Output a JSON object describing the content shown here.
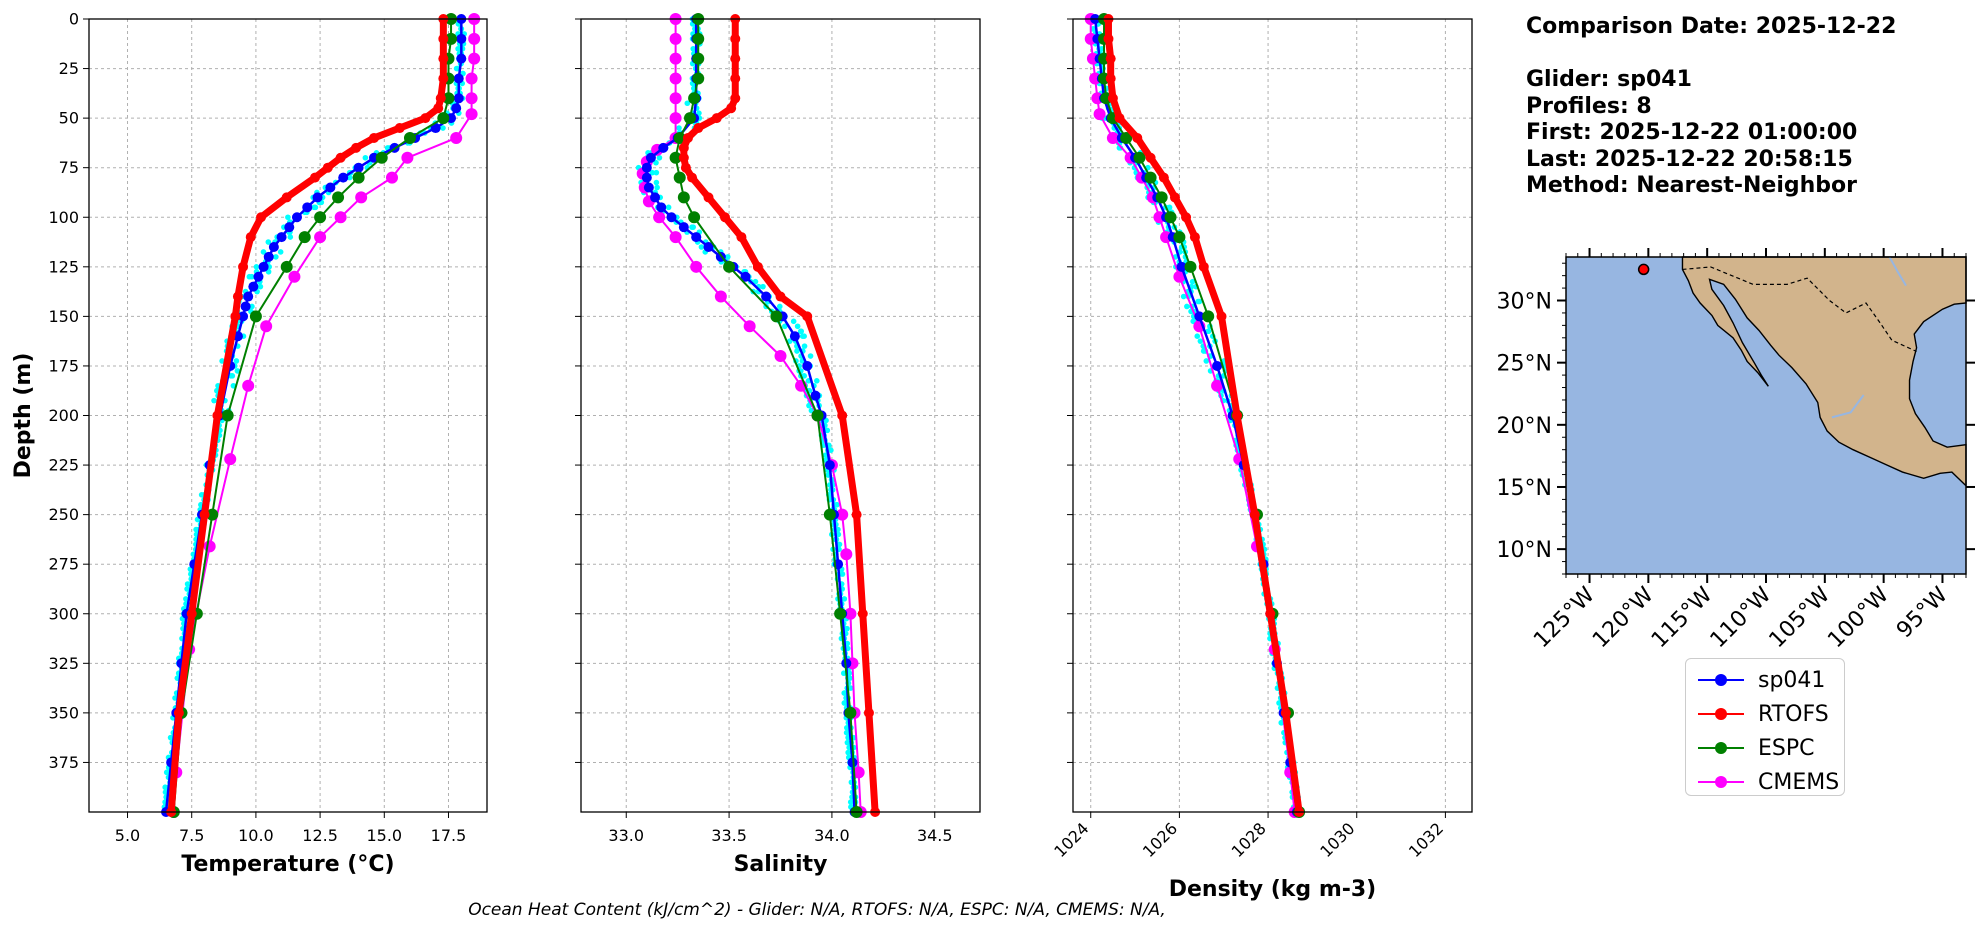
{
  "info": {
    "comparison_date": "Comparison Date: 2025-12-22",
    "glider": "Glider: sp041",
    "profiles": "Profiles: 8",
    "first": "First: 2025-12-22 01:00:00",
    "last": "Last: 2025-12-22 20:58:15",
    "method": "Method: Nearest-Neighbor"
  },
  "caption": "Ocean Heat Content (kJ/cm^2) - Glider: N/A,  RTOFS: N/A,  ESPC: N/A,  CMEMS: N/A,",
  "legend": [
    {
      "name": "sp041",
      "color": "#0000ff"
    },
    {
      "name": "RTOFS",
      "color": "#ff0000"
    },
    {
      "name": "ESPC",
      "color": "#008000"
    },
    {
      "name": "CMEMS",
      "color": "#ff00ff"
    }
  ],
  "chart_data": [
    {
      "type": "line",
      "xlabel": "Temperature (°C)",
      "ylabel": "Depth (m)",
      "xlim": [
        3.5,
        19.0
      ],
      "ylim": [
        400,
        0
      ],
      "xticks": [
        "5.0",
        "7.5",
        "10.0",
        "12.5",
        "15.0",
        "17.5"
      ],
      "yticks": [
        "0",
        "25",
        "50",
        "75",
        "100",
        "125",
        "150",
        "175",
        "200",
        "225",
        "250",
        "275",
        "300",
        "325",
        "350",
        "375"
      ],
      "grid": true,
      "series": [
        {
          "name": "sp041",
          "color": "#0000ff",
          "depth": [
            0,
            10,
            20,
            30,
            40,
            45,
            50,
            55,
            60,
            65,
            70,
            75,
            80,
            85,
            90,
            95,
            100,
            105,
            110,
            115,
            120,
            125,
            130,
            135,
            140,
            145,
            150,
            160,
            175,
            200,
            225,
            250,
            275,
            300,
            325,
            350,
            375,
            400
          ],
          "values": [
            18.0,
            18.0,
            18.0,
            17.9,
            17.9,
            17.8,
            17.6,
            17.0,
            16.2,
            15.4,
            14.6,
            14.0,
            13.4,
            12.9,
            12.4,
            12.0,
            11.6,
            11.3,
            11.0,
            10.7,
            10.5,
            10.3,
            10.1,
            9.9,
            9.7,
            9.6,
            9.5,
            9.3,
            9.0,
            8.6,
            8.2,
            7.9,
            7.6,
            7.3,
            7.1,
            6.9,
            6.7,
            6.5
          ]
        },
        {
          "name": "RTOFS",
          "color": "#ff0000",
          "depth": [
            0,
            10,
            20,
            30,
            40,
            45,
            50,
            55,
            60,
            65,
            70,
            75,
            80,
            90,
            100,
            110,
            125,
            140,
            150,
            200,
            250,
            300,
            350,
            400
          ],
          "values": [
            17.3,
            17.3,
            17.3,
            17.3,
            17.2,
            17.1,
            16.6,
            15.6,
            14.6,
            13.9,
            13.3,
            12.8,
            12.3,
            11.2,
            10.2,
            9.8,
            9.5,
            9.3,
            9.2,
            8.5,
            8.0,
            7.5,
            7.0,
            6.7
          ]
        },
        {
          "name": "ESPC",
          "color": "#008000",
          "depth": [
            0,
            10,
            20,
            30,
            40,
            50,
            60,
            70,
            80,
            90,
            100,
            110,
            125,
            150,
            200,
            250,
            300,
            350,
            400
          ],
          "values": [
            17.6,
            17.6,
            17.5,
            17.5,
            17.5,
            17.3,
            16.0,
            14.9,
            14.0,
            13.2,
            12.5,
            11.9,
            11.2,
            10.0,
            8.9,
            8.3,
            7.7,
            7.1,
            6.8
          ]
        },
        {
          "name": "CMEMS",
          "color": "#ff00ff",
          "depth": [
            0,
            10,
            20,
            30,
            40,
            48,
            60,
            70,
            80,
            90,
            100,
            110,
            130,
            155,
            185,
            222,
            266,
            318,
            380,
            400
          ],
          "values": [
            18.5,
            18.5,
            18.5,
            18.4,
            18.4,
            18.4,
            17.8,
            15.9,
            15.3,
            14.1,
            13.3,
            12.5,
            11.5,
            10.4,
            9.7,
            9.0,
            8.2,
            7.4,
            6.9,
            6.8
          ]
        }
      ]
    },
    {
      "type": "line",
      "xlabel": "Salinity",
      "xlim": [
        32.78,
        34.72
      ],
      "ylim": [
        400,
        0
      ],
      "xticks": [
        "33.0",
        "33.5",
        "34.0",
        "34.5"
      ],
      "grid": true,
      "series": [
        {
          "name": "sp041",
          "color": "#0000ff",
          "depth": [
            0,
            10,
            20,
            30,
            40,
            50,
            60,
            65,
            70,
            75,
            80,
            85,
            90,
            95,
            100,
            105,
            110,
            115,
            120,
            125,
            130,
            140,
            150,
            160,
            175,
            190,
            200,
            225,
            250,
            275,
            300,
            325,
            350,
            375,
            400
          ],
          "values": [
            33.34,
            33.34,
            33.34,
            33.34,
            33.34,
            33.33,
            33.25,
            33.18,
            33.12,
            33.1,
            33.1,
            33.11,
            33.14,
            33.17,
            33.22,
            33.28,
            33.34,
            33.4,
            33.46,
            33.52,
            33.58,
            33.68,
            33.76,
            33.82,
            33.88,
            33.92,
            33.95,
            33.99,
            34.01,
            34.03,
            34.05,
            34.07,
            34.08,
            34.1,
            34.11
          ]
        },
        {
          "name": "RTOFS",
          "color": "#ff0000",
          "depth": [
            0,
            10,
            20,
            30,
            40,
            45,
            50,
            55,
            60,
            65,
            70,
            75,
            80,
            90,
            100,
            110,
            125,
            140,
            150,
            200,
            250,
            300,
            350,
            400
          ],
          "values": [
            33.53,
            33.53,
            33.53,
            33.53,
            33.53,
            33.51,
            33.44,
            33.35,
            33.3,
            33.28,
            33.28,
            33.29,
            33.32,
            33.4,
            33.48,
            33.56,
            33.64,
            33.75,
            33.88,
            34.05,
            34.12,
            34.15,
            34.18,
            34.21
          ]
        },
        {
          "name": "ESPC",
          "color": "#008000",
          "depth": [
            0,
            10,
            20,
            30,
            40,
            50,
            60,
            70,
            80,
            90,
            100,
            125,
            150,
            200,
            250,
            300,
            350,
            400
          ],
          "values": [
            33.35,
            33.35,
            33.35,
            33.35,
            33.33,
            33.31,
            33.26,
            33.24,
            33.26,
            33.28,
            33.33,
            33.5,
            33.73,
            33.93,
            33.99,
            34.04,
            34.09,
            34.12
          ]
        },
        {
          "name": "CMEMS",
          "color": "#ff00ff",
          "depth": [
            0,
            10,
            20,
            30,
            40,
            50,
            60,
            66,
            72,
            78,
            85,
            92,
            100,
            110,
            125,
            140,
            155,
            170,
            185,
            200,
            225,
            250,
            270,
            300,
            325,
            350,
            380,
            400
          ],
          "values": [
            33.24,
            33.24,
            33.24,
            33.24,
            33.24,
            33.24,
            33.24,
            33.15,
            33.1,
            33.08,
            33.09,
            33.11,
            33.16,
            33.24,
            33.34,
            33.46,
            33.6,
            33.75,
            33.85,
            33.93,
            34.0,
            34.05,
            34.07,
            34.09,
            34.1,
            34.11,
            34.13,
            34.14
          ]
        }
      ]
    },
    {
      "type": "line",
      "xlabel": "Density (kg m-3)",
      "xlim": [
        1023.6,
        1032.6
      ],
      "ylim": [
        400,
        0
      ],
      "xticks": [
        "1024",
        "1026",
        "1028",
        "1030",
        "1032"
      ],
      "grid": true,
      "series": [
        {
          "name": "sp041",
          "color": "#0000ff",
          "depth": [
            0,
            10,
            20,
            30,
            40,
            50,
            60,
            70,
            80,
            90,
            100,
            110,
            125,
            150,
            175,
            200,
            225,
            250,
            275,
            300,
            325,
            350,
            375,
            400
          ],
          "values": [
            1024.1,
            1024.15,
            1024.2,
            1024.25,
            1024.3,
            1024.45,
            1024.7,
            1025.0,
            1025.25,
            1025.5,
            1025.7,
            1025.85,
            1026.05,
            1026.45,
            1026.85,
            1027.2,
            1027.45,
            1027.7,
            1027.9,
            1028.05,
            1028.2,
            1028.35,
            1028.5,
            1028.65
          ]
        },
        {
          "name": "RTOFS",
          "color": "#ff0000",
          "depth": [
            0,
            10,
            20,
            30,
            40,
            50,
            60,
            70,
            80,
            90,
            100,
            110,
            125,
            150,
            200,
            250,
            300,
            350,
            400
          ],
          "values": [
            1024.4,
            1024.4,
            1024.45,
            1024.45,
            1024.5,
            1024.65,
            1025.05,
            1025.35,
            1025.65,
            1025.9,
            1026.15,
            1026.35,
            1026.55,
            1026.95,
            1027.3,
            1027.7,
            1028.05,
            1028.4,
            1028.7
          ]
        },
        {
          "name": "ESPC",
          "color": "#008000",
          "depth": [
            0,
            10,
            20,
            30,
            40,
            50,
            60,
            70,
            80,
            90,
            100,
            110,
            125,
            150,
            200,
            250,
            300,
            350,
            400
          ],
          "values": [
            1024.3,
            1024.3,
            1024.3,
            1024.3,
            1024.35,
            1024.5,
            1024.8,
            1025.1,
            1025.35,
            1025.6,
            1025.8,
            1026.0,
            1026.25,
            1026.65,
            1027.3,
            1027.75,
            1028.1,
            1028.45,
            1028.7
          ]
        },
        {
          "name": "CMEMS",
          "color": "#ff00ff",
          "depth": [
            0,
            10,
            20,
            30,
            40,
            48,
            60,
            70,
            80,
            90,
            100,
            110,
            130,
            155,
            185,
            222,
            266,
            318,
            380,
            400
          ],
          "values": [
            1024.0,
            1024.0,
            1024.05,
            1024.1,
            1024.15,
            1024.2,
            1024.5,
            1024.9,
            1025.15,
            1025.4,
            1025.55,
            1025.7,
            1026.0,
            1026.45,
            1026.85,
            1027.35,
            1027.75,
            1028.15,
            1028.5,
            1028.6
          ]
        }
      ]
    }
  ],
  "map": {
    "xticks": [
      "125°W",
      "120°W",
      "115°W",
      "110°W",
      "105°W",
      "100°W",
      "95°W"
    ],
    "yticks": [
      "30°N",
      "25°N",
      "20°N",
      "15°N",
      "10°N"
    ],
    "xlim": [
      -127,
      -93
    ],
    "ylim": [
      8,
      33.5
    ],
    "ocean_color": "#97b6e1",
    "land_color": "#d2b48c",
    "marker": {
      "lon": -120.4,
      "lat": 32.5,
      "color": "#ff0000"
    }
  }
}
